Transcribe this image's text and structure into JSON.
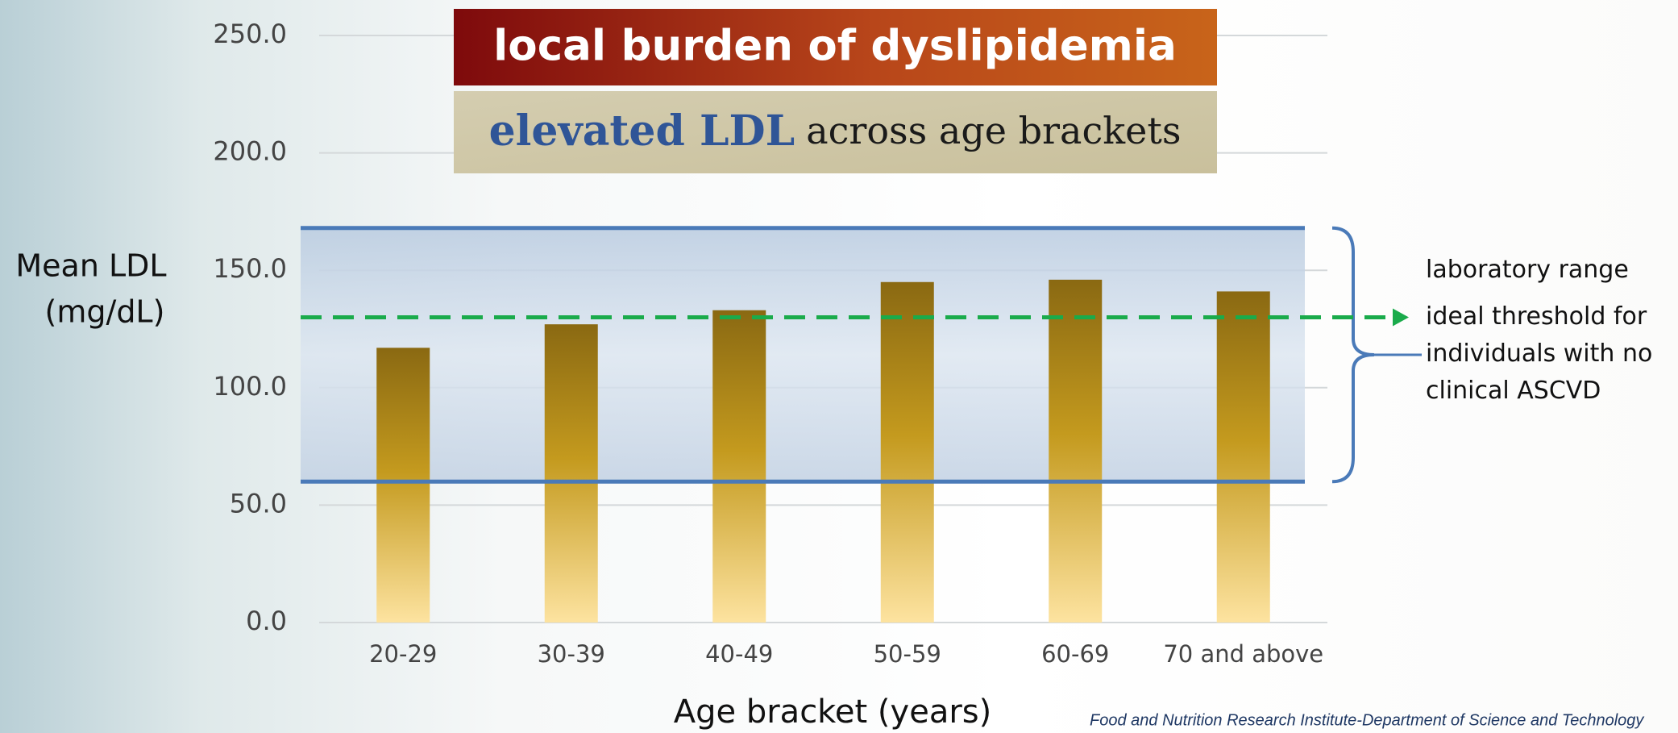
{
  "chart_data": {
    "type": "bar",
    "title": "local burden of dyslipidemia",
    "subtitle_emphasis": "elevated LDL",
    "subtitle": "across age brackets",
    "y_label": [
      "Mean LDL",
      "(mg/dL)"
    ],
    "x_label": "Age bracket (years)",
    "categories": [
      "20-29",
      "30-39",
      "40-49",
      "50-59",
      "60-69",
      "70 and above"
    ],
    "values": [
      117,
      127,
      133,
      145,
      146,
      141
    ],
    "color": "#c49a1e",
    "ylim": [
      0,
      250
    ],
    "yticks": [
      {
        "value": 0,
        "label": "0.0"
      },
      {
        "value": 50,
        "label": "50.0"
      },
      {
        "value": 100,
        "label": "100.0"
      },
      {
        "value": 150,
        "label": "150.0"
      },
      {
        "value": 200,
        "label": "200.0"
      },
      {
        "value": 250,
        "label": "250.0"
      }
    ],
    "grid": true,
    "reference_band": {
      "label": "laboratory range",
      "range": [
        60,
        168
      ],
      "color": "#4a7ab8"
    },
    "threshold": {
      "label": "ideal threshold for individuals with no clinical ASCVD",
      "value": 130,
      "color": "#1aab4b"
    },
    "source": "Food and Nutrition Research Institute-Department of Science and Technology"
  }
}
